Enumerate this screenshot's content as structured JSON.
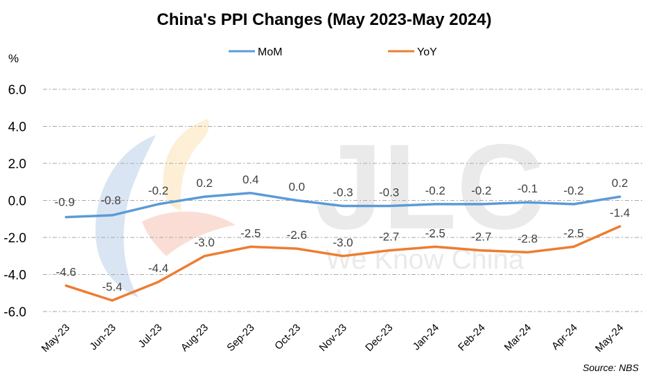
{
  "chart_data": {
    "type": "line",
    "title": "China's PPI Changes (May 2023-May 2024)",
    "ylabel": "%",
    "source": "Source: NBS",
    "categories": [
      "May-23",
      "Jun-23",
      "Jul-23",
      "Aug-23",
      "Sep-23",
      "Oct-23",
      "Nov-23",
      "Dec-23",
      "Jan-24",
      "Feb-24",
      "Mar-24",
      "Apr-24",
      "May-24"
    ],
    "yticks": [
      "6.0",
      "4.0",
      "2.0",
      "0.0",
      "-2.0",
      "-4.0",
      "-6.0"
    ],
    "ylim": [
      -6,
      6
    ],
    "grid": true,
    "legend_position": "top",
    "series": [
      {
        "name": "MoM",
        "color": "#5B9BD5",
        "values": [
          -0.9,
          -0.8,
          -0.2,
          0.2,
          0.4,
          0.0,
          -0.3,
          -0.3,
          -0.2,
          -0.2,
          -0.1,
          -0.2,
          0.2
        ]
      },
      {
        "name": "YoY",
        "color": "#ED7D31",
        "values": [
          -4.6,
          -5.4,
          -4.4,
          -3.0,
          -2.5,
          -2.6,
          -3.0,
          -2.7,
          -2.5,
          -2.7,
          -2.8,
          -2.5,
          -1.4
        ]
      }
    ],
    "watermark": {
      "logo": "JLC",
      "tagline": "We Know China"
    }
  }
}
